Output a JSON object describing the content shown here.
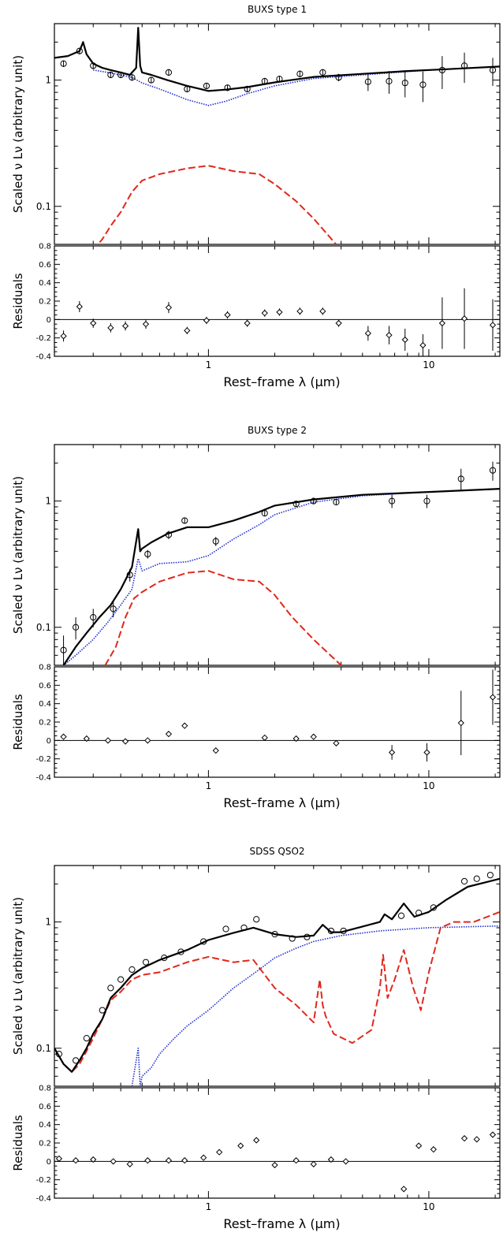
{
  "figure": {
    "panels": [
      {
        "title": "BUXS type 1",
        "ylabel": "Scaled ν Lν (arbitrary unit)",
        "resid_ylabel": "Residuals",
        "xlabel": "Rest–frame λ (μm)"
      },
      {
        "title": "BUXS type 2",
        "ylabel": "Scaled ν Lν (arbitrary unit)",
        "resid_ylabel": "Residuals",
        "xlabel": "Rest–frame λ (μm)"
      },
      {
        "title": "SDSS QSO2",
        "ylabel": "Scaled ν Lν (arbitrary unit)",
        "resid_ylabel": "Residuals",
        "xlabel": "Rest–frame λ (μm)"
      }
    ]
  },
  "colors": {
    "total_model": "#000000",
    "agn_component": "#1f2fd0",
    "host_component": "#e0281c",
    "data_points": "#000000"
  },
  "chart_data": [
    {
      "type": "line",
      "title": "BUXS type 1",
      "xscale": "log",
      "yscale": "log",
      "xlim": [
        0.2,
        21
      ],
      "ylim": [
        0.05,
        2.8
      ],
      "x_ticks": [
        1,
        10
      ],
      "x_tick_labels": [
        "1",
        "10"
      ],
      "y_ticks": [
        0.1,
        1
      ],
      "y_tick_labels": [
        "0.1",
        "1"
      ],
      "series": [
        {
          "key": "total",
          "style": "solid",
          "x": [
            0.2,
            0.23,
            0.26,
            0.27,
            0.28,
            0.3,
            0.33,
            0.36,
            0.4,
            0.44,
            0.47,
            0.48,
            0.49,
            0.5,
            0.55,
            0.65,
            0.8,
            1.0,
            1.2,
            1.5,
            2.0,
            3.0,
            5.0,
            8.0,
            12.0,
            21.0
          ],
          "y": [
            1.5,
            1.55,
            1.7,
            2.0,
            1.6,
            1.35,
            1.25,
            1.2,
            1.15,
            1.1,
            1.25,
            2.6,
            1.3,
            1.15,
            1.1,
            1.0,
            0.9,
            0.82,
            0.84,
            0.88,
            0.96,
            1.06,
            1.12,
            1.18,
            1.22,
            1.28
          ]
        },
        {
          "key": "agn",
          "style": "dotted",
          "x": [
            0.3,
            0.35,
            0.4,
            0.45,
            0.5,
            0.6,
            0.8,
            1.0,
            1.2,
            1.5,
            2.0,
            3.0,
            5.0,
            10.0,
            21.0
          ],
          "y": [
            1.2,
            1.15,
            1.1,
            1.05,
            0.95,
            0.85,
            0.7,
            0.63,
            0.68,
            0.78,
            0.9,
            1.03,
            1.1,
            1.2,
            1.28
          ]
        },
        {
          "key": "host",
          "style": "dashed",
          "x": [
            0.3,
            0.33,
            0.36,
            0.4,
            0.45,
            0.5,
            0.6,
            0.8,
            1.0,
            1.3,
            1.7,
            2.0,
            2.5,
            3.0,
            4.0
          ],
          "y": [
            0.045,
            0.055,
            0.07,
            0.09,
            0.13,
            0.16,
            0.18,
            0.2,
            0.21,
            0.19,
            0.18,
            0.15,
            0.11,
            0.08,
            0.045
          ]
        }
      ],
      "points": {
        "x": [
          0.22,
          0.26,
          0.3,
          0.36,
          0.4,
          0.45,
          0.55,
          0.66,
          0.8,
          0.98,
          1.22,
          1.5,
          1.8,
          2.1,
          2.6,
          3.3,
          3.9,
          5.3,
          6.6,
          7.8,
          9.4,
          11.5,
          14.5,
          19.5
        ],
        "y": [
          1.35,
          1.7,
          1.3,
          1.1,
          1.1,
          1.05,
          1.0,
          1.15,
          0.85,
          0.9,
          0.87,
          0.85,
          0.98,
          1.02,
          1.12,
          1.15,
          1.05,
          0.97,
          0.98,
          0.95,
          0.92,
          1.2,
          1.3,
          1.2
        ],
        "yerr": [
          0.08,
          0.1,
          0.08,
          0.06,
          0.06,
          0.06,
          0.05,
          0.07,
          0.05,
          0.05,
          0.05,
          0.05,
          0.06,
          0.06,
          0.07,
          0.07,
          0.07,
          0.15,
          0.2,
          0.22,
          0.25,
          0.35,
          0.35,
          0.3
        ]
      },
      "residuals": {
        "ylabel": "Residuals",
        "ylim": [
          -0.4,
          0.8
        ],
        "y_ticks": [
          -0.4,
          -0.2,
          0,
          0.2,
          0.4,
          0.6,
          0.8
        ],
        "y_tick_labels": [
          "-0.4",
          "-0.2",
          "0",
          "0.2",
          "0.4",
          "0.6",
          "0.8"
        ],
        "x": [
          0.22,
          0.26,
          0.3,
          0.36,
          0.42,
          0.52,
          0.66,
          0.8,
          0.98,
          1.22,
          1.5,
          1.8,
          2.1,
          2.6,
          3.3,
          3.9,
          5.3,
          6.6,
          7.8,
          9.4,
          11.5,
          14.5,
          19.5
        ],
        "y": [
          -0.18,
          0.14,
          -0.04,
          -0.09,
          -0.07,
          -0.05,
          0.13,
          -0.12,
          -0.01,
          0.05,
          -0.04,
          0.07,
          0.08,
          0.09,
          0.09,
          -0.04,
          -0.15,
          -0.17,
          -0.22,
          -0.28,
          -0.04,
          0.01,
          -0.06
        ],
        "yerr": [
          0.06,
          0.06,
          0.05,
          0.05,
          0.05,
          0.05,
          0.06,
          0.04,
          0.04,
          0.04,
          0.04,
          0.04,
          0.04,
          0.04,
          0.04,
          0.04,
          0.08,
          0.1,
          0.12,
          0.12,
          0.28,
          0.33,
          0.28
        ]
      },
      "xlabel": "Rest–frame λ (μm)",
      "ylabel": "Scaled ν Lν (arbitrary unit)"
    },
    {
      "type": "line",
      "title": "BUXS type 2",
      "xscale": "log",
      "yscale": "log",
      "xlim": [
        0.2,
        21
      ],
      "ylim": [
        0.05,
        2.8
      ],
      "x_ticks": [
        1,
        10
      ],
      "x_tick_labels": [
        "1",
        "10"
      ],
      "y_ticks": [
        0.1,
        1
      ],
      "y_tick_labels": [
        "0.1",
        "1"
      ],
      "series": [
        {
          "key": "total",
          "style": "solid",
          "x": [
            0.22,
            0.25,
            0.28,
            0.32,
            0.36,
            0.4,
            0.45,
            0.48,
            0.49,
            0.5,
            0.55,
            0.65,
            0.8,
            1.0,
            1.3,
            1.7,
            2.0,
            3.0,
            5.0,
            10.0,
            21.0
          ],
          "y": [
            0.05,
            0.07,
            0.09,
            0.12,
            0.15,
            0.2,
            0.3,
            0.6,
            0.4,
            0.42,
            0.47,
            0.55,
            0.62,
            0.62,
            0.7,
            0.82,
            0.92,
            1.03,
            1.12,
            1.18,
            1.25
          ]
        },
        {
          "key": "agn",
          "style": "dotted",
          "x": [
            0.22,
            0.25,
            0.3,
            0.35,
            0.4,
            0.45,
            0.48,
            0.5,
            0.55,
            0.6,
            0.8,
            1.0,
            1.3,
            1.7,
            2.0,
            3.0,
            5.0,
            10.0,
            21.0
          ],
          "y": [
            0.05,
            0.06,
            0.08,
            0.11,
            0.15,
            0.2,
            0.35,
            0.28,
            0.3,
            0.32,
            0.33,
            0.37,
            0.5,
            0.65,
            0.78,
            0.98,
            1.1,
            1.18,
            1.25
          ]
        },
        {
          "key": "host",
          "style": "dashed",
          "x": [
            0.34,
            0.38,
            0.42,
            0.46,
            0.5,
            0.6,
            0.8,
            1.0,
            1.3,
            1.7,
            2.0,
            2.4,
            3.0,
            4.0
          ],
          "y": [
            0.05,
            0.07,
            0.12,
            0.17,
            0.19,
            0.23,
            0.27,
            0.28,
            0.24,
            0.23,
            0.18,
            0.12,
            0.08,
            0.05
          ]
        }
      ],
      "points": {
        "x": [
          0.22,
          0.25,
          0.3,
          0.37,
          0.44,
          0.53,
          0.66,
          0.78,
          1.08,
          1.8,
          2.5,
          3.0,
          3.8,
          6.8,
          9.8,
          14.0,
          19.5
        ],
        "y": [
          0.066,
          0.1,
          0.12,
          0.14,
          0.26,
          0.38,
          0.54,
          0.7,
          0.48,
          0.8,
          0.95,
          1.0,
          0.98,
          1.0,
          1.0,
          1.5,
          1.75
        ],
        "yerr": [
          0.02,
          0.02,
          0.02,
          0.02,
          0.03,
          0.03,
          0.04,
          0.04,
          0.04,
          0.04,
          0.04,
          0.05,
          0.04,
          0.12,
          0.12,
          0.3,
          0.3
        ]
      },
      "residuals": {
        "ylabel": "Residuals",
        "ylim": [
          -0.4,
          0.8
        ],
        "y_ticks": [
          -0.4,
          -0.2,
          0,
          0.2,
          0.4,
          0.6,
          0.8
        ],
        "y_tick_labels": [
          "-0.4",
          "-0.2",
          "0",
          "0.2",
          "0.4",
          "0.6",
          "0.8"
        ],
        "x": [
          0.22,
          0.28,
          0.35,
          0.42,
          0.53,
          0.66,
          0.78,
          1.08,
          1.8,
          2.5,
          3.0,
          3.8,
          6.8,
          9.8,
          14.0,
          19.5
        ],
        "y": [
          0.04,
          0.02,
          0.0,
          -0.01,
          0.0,
          0.07,
          0.16,
          -0.11,
          0.03,
          0.02,
          0.04,
          -0.03,
          -0.13,
          -0.13,
          0.19,
          0.47
        ],
        "yerr": [
          0.02,
          0.02,
          0.02,
          0.02,
          0.02,
          0.03,
          0.03,
          0.03,
          0.03,
          0.02,
          0.03,
          0.02,
          0.08,
          0.1,
          0.35,
          0.3
        ]
      },
      "xlabel": "Rest–frame λ (μm)",
      "ylabel": "Scaled ν Lν (arbitrary unit)"
    },
    {
      "type": "line",
      "title": "SDSS QSO2",
      "xscale": "log",
      "yscale": "log",
      "xlim": [
        0.2,
        21
      ],
      "ylim": [
        0.05,
        2.8
      ],
      "x_ticks": [
        1,
        10
      ],
      "x_tick_labels": [
        "1",
        "10"
      ],
      "y_ticks": [
        0.1,
        1
      ],
      "y_tick_labels": [
        "0.1",
        "1"
      ],
      "series": [
        {
          "key": "total",
          "style": "solid",
          "x": [
            0.2,
            0.22,
            0.24,
            0.26,
            0.28,
            0.3,
            0.33,
            0.36,
            0.4,
            0.45,
            0.5,
            0.6,
            0.8,
            1.0,
            1.3,
            1.6,
            2.0,
            2.5,
            3.0,
            3.3,
            3.6,
            4.0,
            5.0,
            6.0,
            6.3,
            6.8,
            7.7,
            8.6,
            10.0,
            12.0,
            15.0,
            21.0
          ],
          "y": [
            0.1,
            0.075,
            0.065,
            0.08,
            0.1,
            0.13,
            0.17,
            0.25,
            0.3,
            0.38,
            0.43,
            0.5,
            0.6,
            0.72,
            0.82,
            0.9,
            0.8,
            0.76,
            0.78,
            0.95,
            0.83,
            0.83,
            0.92,
            1.0,
            1.15,
            1.05,
            1.4,
            1.1,
            1.2,
            1.5,
            1.9,
            2.2
          ]
        },
        {
          "key": "agn",
          "style": "dotted",
          "x": [
            0.45,
            0.48,
            0.49,
            0.5,
            0.55,
            0.6,
            0.7,
            0.8,
            1.0,
            1.3,
            1.7,
            2.0,
            2.5,
            3.0,
            4.0,
            6.0,
            10.0,
            21.0
          ],
          "y": [
            0.05,
            0.1,
            0.05,
            0.06,
            0.07,
            0.09,
            0.12,
            0.15,
            0.2,
            0.3,
            0.42,
            0.52,
            0.62,
            0.7,
            0.78,
            0.85,
            0.9,
            0.93
          ]
        },
        {
          "key": "host",
          "style": "dashed",
          "x": [
            0.2,
            0.22,
            0.24,
            0.26,
            0.28,
            0.3,
            0.33,
            0.36,
            0.4,
            0.45,
            0.5,
            0.6,
            0.8,
            1.0,
            1.3,
            1.6,
            2.0,
            2.5,
            3.0,
            3.2,
            3.3,
            3.4,
            3.7,
            4.5,
            5.5,
            6.0,
            6.2,
            6.5,
            7.0,
            7.7,
            8.5,
            9.2,
            10.0,
            11.3,
            13.0,
            16.0,
            21.0
          ],
          "y": [
            0.1,
            0.075,
            0.065,
            0.075,
            0.095,
            0.12,
            0.17,
            0.24,
            0.28,
            0.35,
            0.38,
            0.4,
            0.48,
            0.53,
            0.48,
            0.5,
            0.3,
            0.22,
            0.16,
            0.35,
            0.22,
            0.18,
            0.13,
            0.11,
            0.14,
            0.3,
            0.55,
            0.25,
            0.35,
            0.6,
            0.3,
            0.2,
            0.4,
            0.9,
            1.0,
            1.0,
            1.2
          ]
        }
      ],
      "points": {
        "x": [
          0.21,
          0.25,
          0.28,
          0.33,
          0.36,
          0.4,
          0.45,
          0.52,
          0.63,
          0.75,
          0.95,
          1.2,
          1.45,
          1.65,
          2.0,
          2.4,
          2.8,
          3.6,
          4.1,
          7.5,
          9.0,
          10.5,
          14.5,
          16.5,
          19.0
        ],
        "y": [
          0.09,
          0.08,
          0.12,
          0.2,
          0.3,
          0.35,
          0.42,
          0.48,
          0.52,
          0.58,
          0.7,
          0.88,
          0.9,
          1.05,
          0.8,
          0.74,
          0.76,
          0.85,
          0.85,
          1.12,
          1.18,
          1.3,
          2.1,
          2.2,
          2.35
        ]
      },
      "residuals": {
        "ylabel": "Residuals",
        "ylim": [
          -0.4,
          0.8
        ],
        "y_ticks": [
          -0.4,
          -0.2,
          0,
          0.2,
          0.4,
          0.6,
          0.8
        ],
        "y_tick_labels": [
          "-0.4",
          "-0.2",
          "0",
          "0.2",
          "0.4",
          "0.6",
          "0.8"
        ],
        "x": [
          0.21,
          0.25,
          0.3,
          0.37,
          0.44,
          0.53,
          0.66,
          0.78,
          0.95,
          1.12,
          1.4,
          1.65,
          2.0,
          2.5,
          3.0,
          3.6,
          4.2,
          7.7,
          9.0,
          10.5,
          14.5,
          16.5,
          19.5
        ],
        "y": [
          0.03,
          0.01,
          0.02,
          0.0,
          -0.03,
          0.01,
          0.01,
          0.01,
          0.04,
          0.1,
          0.17,
          0.23,
          -0.04,
          0.01,
          -0.03,
          0.02,
          0.0,
          -0.3,
          0.17,
          0.13,
          0.25,
          0.24,
          0.29
        ]
      },
      "xlabel": "Rest–frame λ (μm)",
      "ylabel": "Scaled ν Lν (arbitrary unit)"
    }
  ]
}
